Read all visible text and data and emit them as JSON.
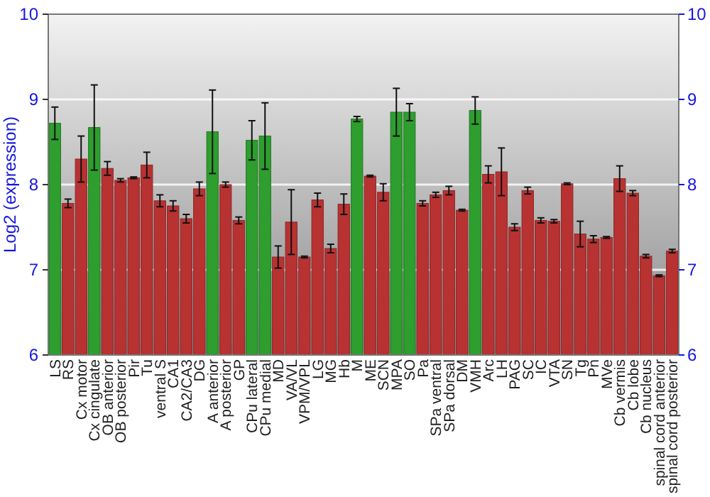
{
  "chart_data": {
    "type": "bar",
    "ylabel": "Log2 (expression)",
    "categories": [
      "LS",
      "RS",
      "Cx motor",
      "Cx cingulate",
      "OB anterior",
      "OB posterior",
      "Pir",
      "Tu",
      "ventral S",
      "CA1",
      "CA2/CA3",
      "DG",
      "A anterior",
      "A posterior",
      "GP",
      "CPu lateral",
      "CPu medial",
      "MD",
      "VA/VL",
      "VPM/VPL",
      "LG",
      "MG",
      "Hb",
      "M",
      "ME",
      "SCN",
      "MPA",
      "SO",
      "Pa",
      "SPa ventral",
      "SPa dorsal",
      "DM",
      "VMH",
      "Arc",
      "LH",
      "PAG",
      "SC",
      "IC",
      "VTA",
      "SN",
      "Tg",
      "Pn",
      "MVe",
      "Cb vermis",
      "Cb lobe",
      "Cb nucleus",
      "spinal cord anterior",
      "spinal cord posterior"
    ],
    "values": [
      8.72,
      7.78,
      8.3,
      8.67,
      8.19,
      8.05,
      8.08,
      8.23,
      7.81,
      7.75,
      7.6,
      7.95,
      8.62,
      8.0,
      7.58,
      8.52,
      8.57,
      7.15,
      7.56,
      7.15,
      7.82,
      7.25,
      7.77,
      8.77,
      8.1,
      7.91,
      8.85,
      8.85,
      7.78,
      7.88,
      7.93,
      7.7,
      8.87,
      8.12,
      8.15,
      7.5,
      7.93,
      7.58,
      7.57,
      8.01,
      7.42,
      7.36,
      7.38,
      8.07,
      7.9,
      7.16,
      6.93,
      7.22
    ],
    "errors": [
      0.19,
      0.05,
      0.27,
      0.5,
      0.08,
      0.02,
      0.01,
      0.15,
      0.07,
      0.06,
      0.05,
      0.08,
      0.49,
      0.03,
      0.04,
      0.23,
      0.39,
      0.13,
      0.38,
      0.01,
      0.08,
      0.05,
      0.12,
      0.03,
      0.01,
      0.1,
      0.28,
      0.1,
      0.03,
      0.03,
      0.05,
      0.01,
      0.16,
      0.1,
      0.28,
      0.04,
      0.04,
      0.03,
      0.02,
      0.01,
      0.15,
      0.04,
      0.01,
      0.15,
      0.03,
      0.02,
      0.01,
      0.02
    ],
    "colors": [
      "#2e9e2e",
      "#b83232",
      "#b83232",
      "#2e9e2e",
      "#b83232",
      "#b83232",
      "#b83232",
      "#b83232",
      "#b83232",
      "#b83232",
      "#b83232",
      "#b83232",
      "#2e9e2e",
      "#b83232",
      "#b83232",
      "#2e9e2e",
      "#2e9e2e",
      "#b83232",
      "#b83232",
      "#b83232",
      "#b83232",
      "#b83232",
      "#b83232",
      "#2e9e2e",
      "#b83232",
      "#b83232",
      "#2e9e2e",
      "#2e9e2e",
      "#b83232",
      "#b83232",
      "#b83232",
      "#b83232",
      "#2e9e2e",
      "#b83232",
      "#b83232",
      "#b83232",
      "#b83232",
      "#b83232",
      "#b83232",
      "#b83232",
      "#b83232",
      "#b83232",
      "#b83232",
      "#b83232",
      "#b83232",
      "#b83232",
      "#b83232",
      "#b83232"
    ],
    "ylim": [
      6,
      10
    ],
    "yticks": [
      6,
      7,
      8,
      9,
      10
    ],
    "y2lim": [
      6,
      10
    ],
    "y2ticks": [
      6,
      7,
      8,
      9,
      10
    ],
    "grid": "y"
  }
}
